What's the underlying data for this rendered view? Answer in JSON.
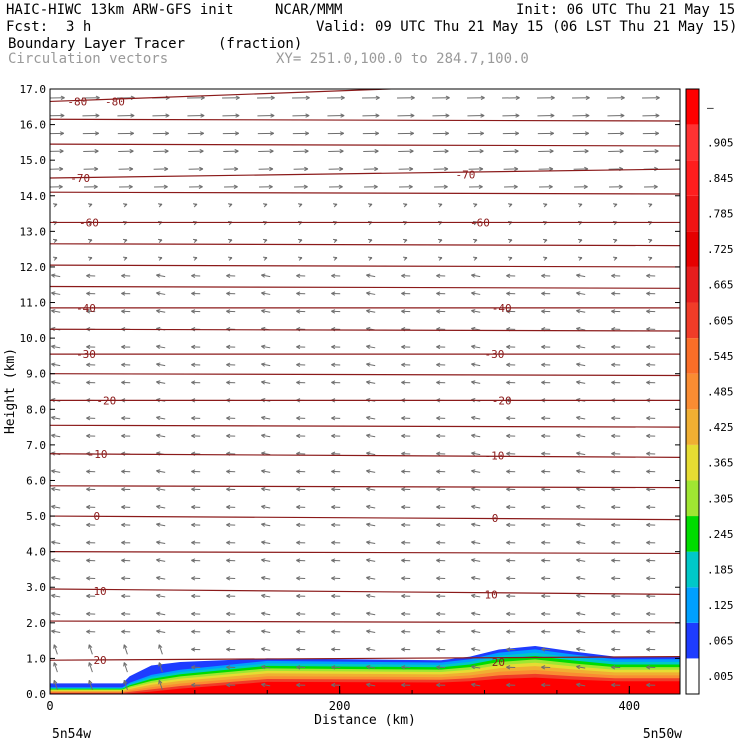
{
  "header": {
    "model": "HAIC-HIWC 13km ARW-GFS init",
    "org": "NCAR/MMM",
    "init": "Init: 06 UTC Thu 21 May 15",
    "fcst_label": "Fcst:",
    "fcst_value": "3 h",
    "valid": "Valid: 09 UTC Thu 21 May 15 (06 LST Thu 21 May 15)",
    "field": "Boundary Layer Tracer",
    "field_units": "(fraction)",
    "vectors": "Circulation vectors",
    "xy": "XY= 251.0,100.0 to 284.7,100.0"
  },
  "chart_data": {
    "type": "heatmap",
    "title": "Boundary Layer Tracer (fraction)",
    "xlabel": "Distance (km)",
    "ylabel": "Height (km)",
    "xlim": [
      0,
      435
    ],
    "ylim": [
      0,
      17
    ],
    "x_ticks": [
      "0",
      "200",
      "400"
    ],
    "x_tick_values": [
      0,
      200,
      400
    ],
    "x_end_labels": [
      "5n54w",
      "5n50w"
    ],
    "y_ticks": [
      "0.0",
      "1.0",
      "2.0",
      "3.0",
      "4.0",
      "5.0",
      "6.0",
      "7.0",
      "8.0",
      "9.0",
      "10.0",
      "11.0",
      "12.0",
      "13.0",
      "14.0",
      "15.0",
      "16.0",
      "17.0"
    ],
    "colorbar": {
      "labels": [
        ".005",
        ".065",
        ".125",
        ".185",
        ".245",
        ".305",
        ".365",
        ".425",
        ".485",
        ".545",
        ".605",
        ".665",
        ".725",
        ".785",
        ".845",
        ".905",
        "–"
      ],
      "colors": [
        "#ffffff",
        "#1e3cff",
        "#00a0ff",
        "#00c8c8",
        "#00dc00",
        "#a0e632",
        "#e6dc32",
        "#f0af32",
        "#fa8c32",
        "#fa6e28",
        "#f03c28",
        "#e61e1e",
        "#e60000",
        "#f01414",
        "#ff1e1e",
        "#ff3232",
        "#ff0000"
      ]
    },
    "temperature_contours": [
      {
        "label": "-80",
        "y_left": 16.65,
        "y_right": 17.3,
        "label_positions": [
          [
            12,
            16.65
          ],
          [
            38,
            16.65
          ]
        ]
      },
      {
        "label": "-70",
        "y_left": 14.5,
        "y_right": 14.75,
        "label_positions": [
          [
            14,
            14.5
          ],
          [
            280,
            14.6
          ]
        ]
      },
      {
        "label": "-60",
        "y_left": 13.25,
        "y_right": 13.25,
        "label_positions": [
          [
            20,
            13.25
          ],
          [
            290,
            13.25
          ]
        ]
      },
      {
        "label": "-40",
        "y_left": 10.85,
        "y_right": 10.85,
        "label_positions": [
          [
            18,
            10.85
          ],
          [
            305,
            10.85
          ]
        ]
      },
      {
        "label": "-30",
        "y_left": 9.55,
        "y_right": 9.55,
        "label_positions": [
          [
            18,
            9.55
          ],
          [
            300,
            9.55
          ]
        ]
      },
      {
        "label": "-20",
        "y_left": 8.25,
        "y_right": 8.25,
        "label_positions": [
          [
            32,
            8.25
          ],
          [
            305,
            8.25
          ]
        ]
      },
      {
        "label": "-10",
        "y_left": 6.75,
        "y_right": 6.65,
        "label_positions": [
          [
            26,
            6.75
          ],
          [
            300,
            6.7
          ]
        ]
      },
      {
        "label": "0",
        "y_left": 5.0,
        "y_right": 4.9,
        "label_positions": [
          [
            30,
            5.0
          ],
          [
            305,
            4.95
          ]
        ]
      },
      {
        "label": "10",
        "y_left": 2.95,
        "y_right": 2.8,
        "label_positions": [
          [
            30,
            2.9
          ],
          [
            300,
            2.8
          ]
        ]
      },
      {
        "label": "20",
        "y_left": 0.95,
        "y_right": 1.05,
        "label_positions": [
          [
            30,
            0.95
          ],
          [
            305,
            0.9
          ]
        ]
      }
    ],
    "other_contour_levels_km": [
      16.15,
      15.45,
      14.1,
      12.65,
      12.05,
      11.45,
      10.25,
      9.0,
      7.55,
      5.85,
      4.0,
      2.05
    ],
    "tracer_top_km": [
      [
        0,
        0.3
      ],
      [
        50,
        0.3
      ],
      [
        55,
        0.5
      ],
      [
        70,
        0.8
      ],
      [
        90,
        0.9
      ],
      [
        150,
        1.0
      ],
      [
        270,
        0.95
      ],
      [
        290,
        1.05
      ],
      [
        310,
        1.25
      ],
      [
        335,
        1.35
      ],
      [
        360,
        1.2
      ],
      [
        390,
        1.05
      ],
      [
        435,
        1.05
      ]
    ]
  }
}
